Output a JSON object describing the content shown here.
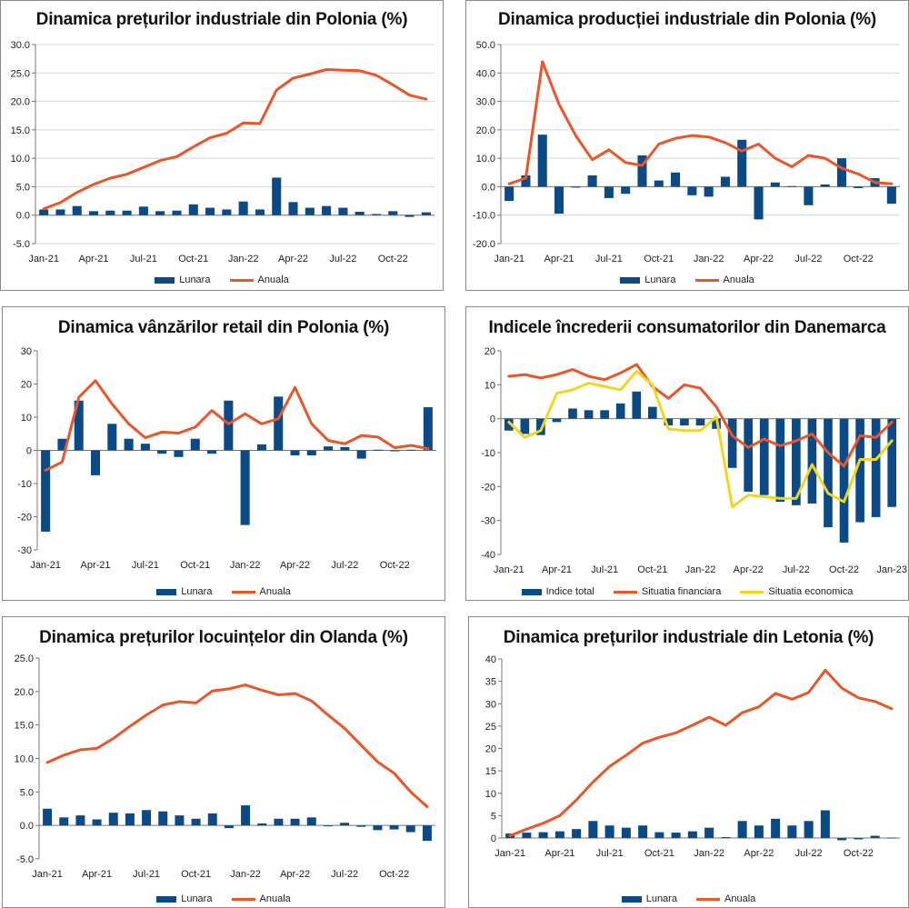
{
  "colors": {
    "bar": "#0c4a87",
    "line_red": "#e8562a",
    "line_yellow": "#f0d522",
    "grid": "#d4d4d4"
  },
  "chart_data": [
    {
      "id": "c1",
      "type": "bar+line",
      "title": "Dinamica prețurilor industriale din Polonia (%)",
      "xtick_labels": [
        "Jan-21",
        "Apr-21",
        "Jul-21",
        "Oct-21",
        "Jan-22",
        "Apr-22",
        "Jul-22",
        "Oct-22"
      ],
      "ylim": [
        -5,
        30
      ],
      "ystep": 5,
      "ydecimals": 1,
      "grid": true,
      "legend_position": "bottom",
      "series": [
        {
          "name": "Lunara",
          "kind": "bar",
          "color": "#0c4a87",
          "values": [
            1.0,
            1.0,
            1.6,
            0.7,
            0.8,
            0.8,
            1.5,
            0.7,
            0.8,
            1.9,
            1.3,
            1.0,
            2.4,
            1.0,
            6.6,
            2.3,
            1.3,
            1.6,
            1.3,
            0.6,
            0.2,
            0.7,
            -0.3,
            0.5
          ]
        },
        {
          "name": "Anuala",
          "kind": "line",
          "color": "#e8562a",
          "values": [
            1.1,
            2.2,
            4.0,
            5.4,
            6.5,
            7.2,
            8.4,
            9.6,
            10.3,
            12.0,
            13.6,
            14.4,
            16.2,
            16.1,
            22.0,
            24.1,
            24.8,
            25.6,
            25.5,
            25.4,
            24.6,
            22.9,
            21.1,
            20.4
          ]
        }
      ]
    },
    {
      "id": "c2",
      "type": "bar+line",
      "title": "Dinamica producției industriale din Polonia (%)",
      "xtick_labels": [
        "Jan-21",
        "Apr-21",
        "Jul-21",
        "Oct-21",
        "Jan-22",
        "Apr-22",
        "Jul-22",
        "Oct-22"
      ],
      "ylim": [
        -20,
        50
      ],
      "ystep": 10,
      "ydecimals": 1,
      "grid": true,
      "legend_position": "bottom",
      "series": [
        {
          "name": "Lunara",
          "kind": "bar",
          "color": "#0c4a87",
          "values": [
            -5.0,
            4.0,
            18.3,
            -9.5,
            -0.3,
            4.0,
            -4.0,
            -2.5,
            11.0,
            2.2,
            5.0,
            -3.0,
            -3.5,
            3.5,
            16.5,
            -11.5,
            1.5,
            0.2,
            -6.5,
            0.8,
            10.0,
            -0.5,
            3.0,
            -6.0
          ]
        },
        {
          "name": "Anuala",
          "kind": "line",
          "color": "#e8562a",
          "values": [
            1.0,
            3.0,
            44.0,
            29.0,
            18.0,
            9.5,
            13.0,
            8.5,
            7.5,
            15.0,
            17.0,
            18.0,
            17.5,
            15.5,
            12.5,
            15.0,
            10.0,
            7.0,
            11.0,
            10.0,
            6.5,
            4.5,
            1.5,
            1.0
          ]
        }
      ]
    },
    {
      "id": "c3",
      "type": "bar+line",
      "title": "Dinamica vânzărilor retail din Polonia (%)",
      "xtick_labels": [
        "Jan-21",
        "Apr-21",
        "Jul-21",
        "Oct-21",
        "Jan-22",
        "Apr-22",
        "Jul-22",
        "Oct-22"
      ],
      "ylim": [
        -30,
        30
      ],
      "ystep": 10,
      "ydecimals": 0,
      "grid": false,
      "legend_position": "bottom",
      "series": [
        {
          "name": "Lunara",
          "kind": "bar",
          "color": "#0c4a87",
          "values": [
            -24.5,
            3.5,
            15.0,
            -7.5,
            8.0,
            3.5,
            2.0,
            -1.0,
            -2.0,
            3.5,
            -1.0,
            15.0,
            -22.5,
            1.8,
            16.2,
            -1.5,
            -1.5,
            1.2,
            1.0,
            -2.5,
            0.2,
            -0.2,
            0.2,
            13.0
          ]
        },
        {
          "name": "Anuala",
          "kind": "line",
          "color": "#e8562a",
          "values": [
            -6.0,
            -3.5,
            16.0,
            21.0,
            14.0,
            8.0,
            3.8,
            5.5,
            5.2,
            7.0,
            12.0,
            8.0,
            11.0,
            8.0,
            9.5,
            19.0,
            8.0,
            3.0,
            2.0,
            4.5,
            4.0,
            0.8,
            1.5,
            0.5
          ]
        }
      ]
    },
    {
      "id": "c4",
      "type": "bar+line",
      "title": "Indicele încrederii consumatorilor din Danemarca",
      "xtick_labels": [
        "Jan-21",
        "Apr-21",
        "Jul-21",
        "Oct-21",
        "Jan-22",
        "Apr-22",
        "Jul-22",
        "Oct-22",
        "Jan-23"
      ],
      "ylim": [
        -40,
        20
      ],
      "ystep": 10,
      "ydecimals": 0,
      "grid": false,
      "legend_position": "bottom",
      "series": [
        {
          "name": "Indice total",
          "kind": "bar",
          "color": "#0c4a87",
          "values": [
            -3.5,
            -4.5,
            -4.8,
            -1.0,
            3.0,
            2.5,
            2.5,
            4.5,
            8.0,
            3.5,
            -2.0,
            -2.0,
            -2.0,
            -3.0,
            -14.5,
            -21.5,
            -22.5,
            -24.5,
            -25.5,
            -25.0,
            -32.0,
            -36.5,
            -30.5,
            -29.0,
            -26.0
          ]
        },
        {
          "name": "Situatia financiara",
          "kind": "line",
          "color": "#e8562a",
          "values": [
            12.5,
            13.0,
            12.0,
            13.0,
            14.5,
            12.5,
            11.5,
            13.5,
            16.0,
            9.5,
            6.0,
            10.0,
            9.0,
            3.5,
            -5.0,
            -8.5,
            -6.0,
            -8.0,
            -6.5,
            -4.5,
            -10.0,
            -14.0,
            -5.0,
            -5.5,
            -1.0
          ]
        },
        {
          "name": "Situatia economica",
          "kind": "line",
          "color": "#f0d522",
          "values": [
            -1.0,
            -5.5,
            -3.5,
            7.5,
            8.5,
            10.5,
            9.5,
            8.5,
            14.0,
            10.0,
            -3.0,
            -3.5,
            -3.5,
            0.5,
            -26.0,
            -22.5,
            -23.0,
            -23.5,
            -23.5,
            -13.5,
            -22.0,
            -24.5,
            -12.0,
            -12.0,
            -6.5
          ]
        }
      ]
    },
    {
      "id": "c5",
      "type": "bar+line",
      "title": "Dinamica prețurilor locuințelor din Olanda (%)",
      "xtick_labels": [
        "Jan-21",
        "Apr-21",
        "Jul-21",
        "Oct-21",
        "Jan-22",
        "Apr-22",
        "Jul-22",
        "Oct-22"
      ],
      "ylim": [
        -5,
        25
      ],
      "ystep": 5,
      "ydecimals": 1,
      "grid": false,
      "legend_position": "bottom",
      "series": [
        {
          "name": "Lunara",
          "kind": "bar",
          "color": "#0c4a87",
          "values": [
            2.5,
            1.2,
            1.5,
            0.9,
            1.9,
            1.8,
            2.3,
            2.1,
            1.5,
            1.0,
            1.8,
            -0.4,
            3.0,
            0.3,
            1.0,
            1.0,
            1.2,
            -0.1,
            0.4,
            -0.2,
            -0.7,
            -0.6,
            -1.0,
            -2.3
          ]
        },
        {
          "name": "Anuala",
          "kind": "line",
          "color": "#e8562a",
          "values": [
            9.4,
            10.5,
            11.3,
            11.5,
            13.0,
            14.8,
            16.5,
            18.0,
            18.5,
            18.3,
            20.1,
            20.4,
            21.0,
            20.2,
            19.5,
            19.7,
            18.6,
            16.5,
            14.5,
            12.0,
            9.5,
            7.8,
            5.0,
            2.8
          ]
        }
      ]
    },
    {
      "id": "c6",
      "type": "bar+line",
      "title": "Dinamica prețurilor industriale din Letonia (%)",
      "xtick_labels": [
        "Jan-21",
        "Apr-21",
        "Jul-21",
        "Oct-21",
        "Jan-22",
        "Apr-22",
        "Jul-22",
        "Oct-22"
      ],
      "ylim": [
        0,
        40
      ],
      "ystep": 5,
      "ydecimals": 0,
      "grid": false,
      "legend_position": "bottom",
      "series": [
        {
          "name": "Lunara",
          "kind": "bar",
          "color": "#0c4a87",
          "values": [
            1.0,
            1.2,
            1.3,
            1.5,
            2.0,
            3.8,
            2.8,
            2.3,
            2.8,
            1.3,
            1.2,
            1.5,
            2.3,
            0.2,
            3.8,
            2.8,
            4.3,
            2.8,
            3.8,
            6.2,
            -0.5,
            -0.3,
            0.5,
            0.1
          ]
        },
        {
          "name": "Anuala",
          "kind": "line",
          "color": "#e8562a",
          "values": [
            0.5,
            2.0,
            3.3,
            5.0,
            8.5,
            12.5,
            16.0,
            18.5,
            21.2,
            22.5,
            23.5,
            25.2,
            27.0,
            25.2,
            28.0,
            29.3,
            32.3,
            31.0,
            32.5,
            37.5,
            33.5,
            31.3,
            30.5,
            28.9
          ]
        }
      ]
    }
  ]
}
